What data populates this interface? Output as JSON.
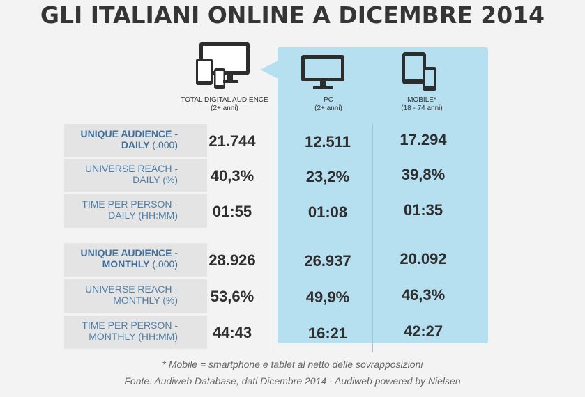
{
  "title": "GLI ITALIANI ONLINE A DICEMBRE 2014",
  "colors": {
    "panel": "#b6dff0",
    "label_blue": "#4f7fa8",
    "row_band": "#e4e4e4"
  },
  "columns": [
    {
      "label": "TOTAL DIGITAL AUDIENCE",
      "sub": "(2+ anni)",
      "icon": "multi-device-icon"
    },
    {
      "label": "PC",
      "sub": "(2+ anni)",
      "icon": "monitor-icon"
    },
    {
      "label": "MOBILE*",
      "sub": "(18 - 74 anni)",
      "icon": "mobile-tablet-icon"
    }
  ],
  "chart_data": {
    "type": "table",
    "title": "GLI ITALIANI ONLINE A DICEMBRE 2014",
    "columns": [
      "TOTAL DIGITAL AUDIENCE (2+ anni)",
      "PC (2+ anni)",
      "MOBILE* (18 - 74 anni)"
    ],
    "rows": [
      {
        "line1": "UNIQUE AUDIENCE -",
        "line2": "DAILY",
        "unit": " (.000)",
        "bold": true,
        "values": [
          "21.744",
          "12.511",
          "17.294"
        ]
      },
      {
        "line1": "UNIVERSE REACH -",
        "line2": "DAILY (%)",
        "unit": "",
        "bold": false,
        "values": [
          "40,3%",
          "23,2%",
          "39,8%"
        ]
      },
      {
        "line1": "TIME PER PERSON -",
        "line2": "DAILY (HH:MM)",
        "unit": "",
        "bold": false,
        "values": [
          "01:55",
          "01:08",
          "01:35"
        ]
      },
      {
        "line1": "UNIQUE AUDIENCE -",
        "line2": "MONTHLY",
        "unit": " (.000)",
        "bold": true,
        "values": [
          "28.926",
          "26.937",
          "20.092"
        ]
      },
      {
        "line1": "UNIVERSE REACH -",
        "line2": "MONTHLY (%)",
        "unit": "",
        "bold": false,
        "values": [
          "53,6%",
          "49,9%",
          "46,3%"
        ]
      },
      {
        "line1": "TIME PER PERSON -",
        "line2": "MONTHLY (HH:MM)",
        "unit": "",
        "bold": false,
        "values": [
          "44:43",
          "16:21",
          "42:27"
        ]
      }
    ]
  },
  "footnotes": [
    "* Mobile = smartphone e tablet al netto delle sovrapposizioni",
    "Fonte: Audiweb Database, dati Dicembre 2014 - Audiweb powered by Nielsen"
  ]
}
